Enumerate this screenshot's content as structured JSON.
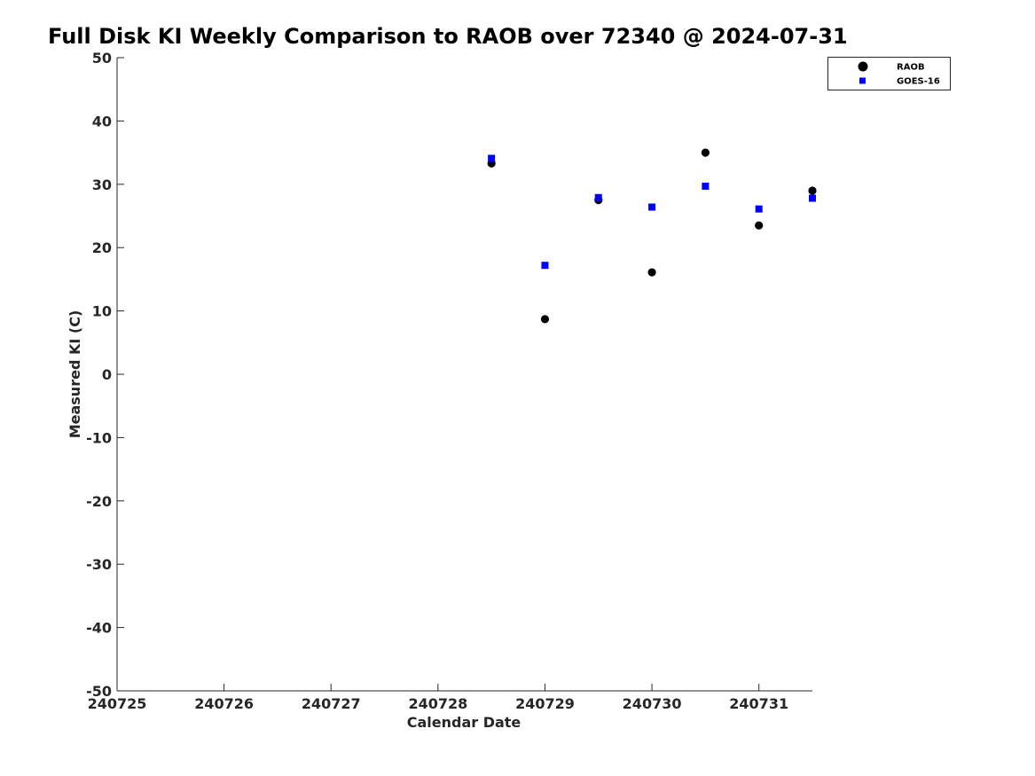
{
  "chart_data": {
    "type": "scatter",
    "title": "Full Disk KI Weekly Comparison to RAOB over 72340 @ 2024-07-31",
    "xlabel": "Calendar Date",
    "ylabel": "Measured KI (C)",
    "xlim": [
      240725,
      240731.5
    ],
    "ylim": [
      -50,
      50
    ],
    "x_ticks": [
      240725,
      240726,
      240727,
      240728,
      240729,
      240730,
      240731
    ],
    "x_tick_labels": [
      "240725",
      "240726",
      "240727",
      "240728",
      "240729",
      "240730",
      "240731"
    ],
    "y_ticks": [
      -50,
      -40,
      -30,
      -20,
      -10,
      0,
      10,
      20,
      30,
      40,
      50
    ],
    "y_tick_labels": [
      "-50",
      "-40",
      "-30",
      "-20",
      "-10",
      "0",
      "10",
      "20",
      "30",
      "40",
      "50"
    ],
    "grid": false,
    "legend_position": "top-right",
    "series": [
      {
        "name": "RAOB",
        "marker": "circle",
        "color": "#000000",
        "x": [
          240728.5,
          240729,
          240729.5,
          240730,
          240730.5,
          240731,
          240731.5
        ],
        "y": [
          33.3,
          8.7,
          27.5,
          16.1,
          35.0,
          23.5,
          29.0
        ]
      },
      {
        "name": "GOES-16",
        "marker": "square",
        "color": "#0000ff",
        "x": [
          240728.5,
          240729,
          240729.5,
          240730,
          240730.5,
          240731,
          240731.5
        ],
        "y": [
          34.1,
          17.2,
          27.9,
          26.4,
          29.7,
          26.1,
          27.8
        ]
      }
    ]
  }
}
